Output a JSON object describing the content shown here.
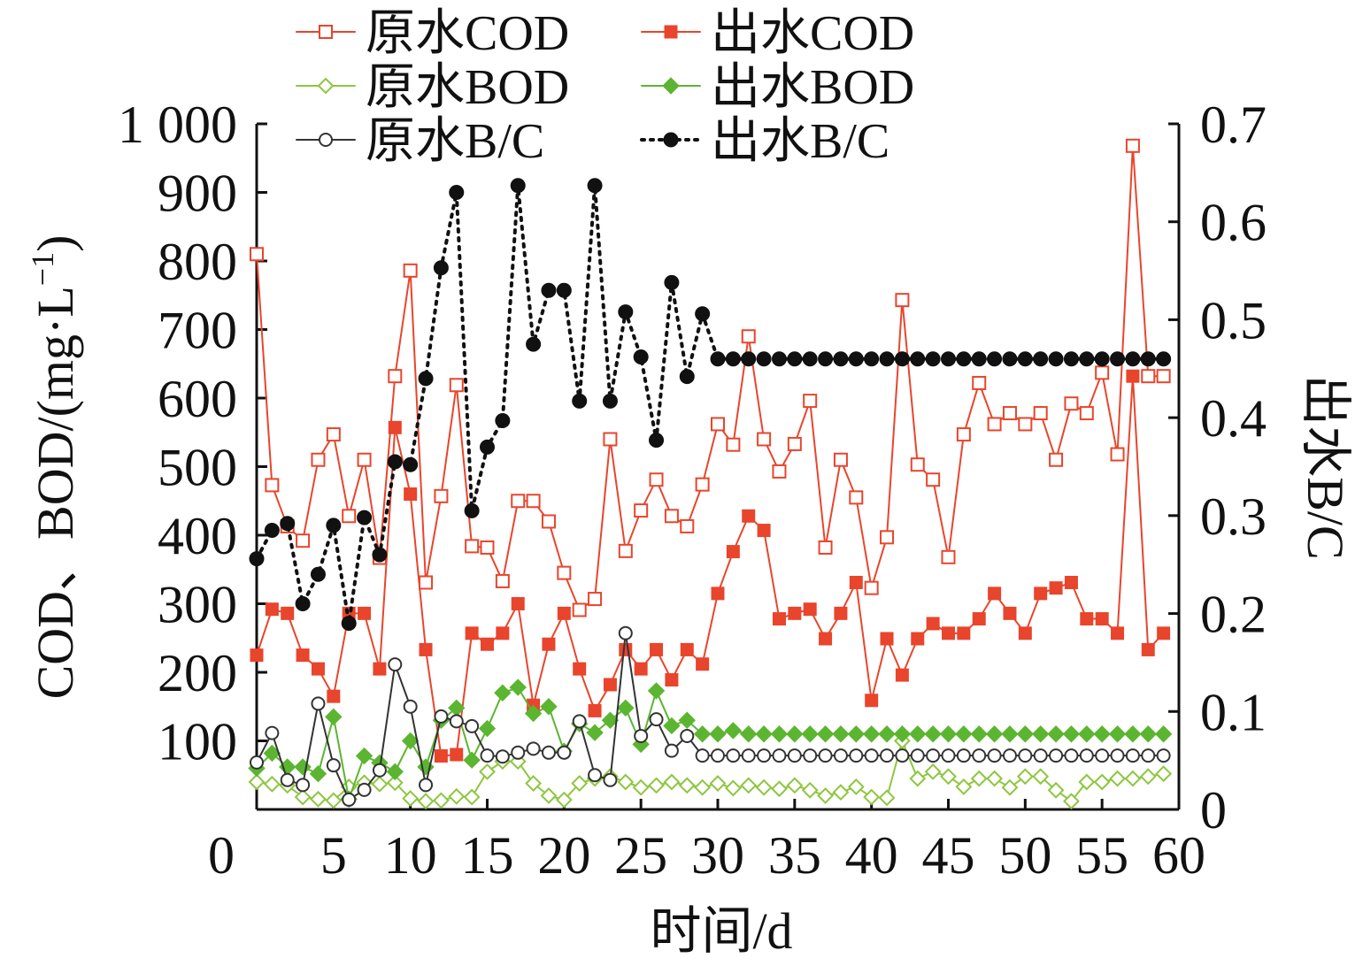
{
  "chart_data": {
    "type": "line",
    "x": [
      1,
      2,
      3,
      4,
      5,
      6,
      7,
      8,
      9,
      10,
      11,
      12,
      13,
      14,
      15,
      16,
      17,
      18,
      19,
      20,
      21,
      22,
      23,
      24,
      25,
      26,
      27,
      28,
      29,
      30,
      31,
      32,
      33,
      34,
      35,
      36,
      37,
      38,
      39,
      40,
      41,
      42,
      43,
      44,
      45,
      46,
      47,
      48,
      49,
      50,
      51,
      52,
      53,
      54,
      55,
      56,
      57,
      58,
      59,
      60
    ],
    "xlabel": "时间/d",
    "ylabel_left": "COD、BOD/(mg·L",
    "ylabel_left_sup": "−1",
    "ylabel_left_close": ")",
    "ylabel_right": "出水B/C",
    "xlim": [
      0,
      60
    ],
    "ylim_left": [
      0,
      1000
    ],
    "ylim_right": [
      0,
      0.7
    ],
    "x_ticks": [
      "0",
      "5",
      "10",
      "15",
      "20",
      "25",
      "30",
      "35",
      "40",
      "45",
      "50",
      "55",
      "60"
    ],
    "y_left_ticks": [
      "100",
      "200",
      "300",
      "400",
      "500",
      "600",
      "700",
      "800",
      "900",
      "1 000"
    ],
    "y_right_ticks": [
      "0",
      "0.1",
      "0.2",
      "0.3",
      "0.4",
      "0.5",
      "0.6",
      "0.7"
    ],
    "legend_position": "top",
    "series": [
      {
        "name": "原水COD",
        "axis": "left",
        "color": "#e8452c",
        "marker": "square-open",
        "dash": "solid",
        "values": [
          810,
          473,
          413,
          392,
          510,
          547,
          428,
          510,
          367,
          632,
          786,
          331,
          457,
          619,
          384,
          382,
          333,
          450,
          450,
          420,
          345,
          291,
          307,
          540,
          377,
          436,
          481,
          428,
          413,
          474,
          562,
          532,
          690,
          540,
          493,
          533,
          596,
          382,
          510,
          455,
          323,
          397,
          743,
          503,
          481,
          368,
          547,
          622,
          562,
          578,
          562,
          578,
          510,
          592,
          578,
          637,
          518,
          968,
          632,
          632
        ]
      },
      {
        "name": "出水COD",
        "axis": "left",
        "color": "#e8452c",
        "marker": "square-filled",
        "dash": "solid",
        "values": [
          225,
          292,
          286,
          225,
          205,
          165,
          286,
          286,
          205,
          557,
          460,
          233,
          78,
          80,
          257,
          241,
          257,
          300,
          152,
          241,
          286,
          205,
          144,
          182,
          233,
          205,
          233,
          189,
          233,
          212,
          315,
          376,
          428,
          407,
          278,
          286,
          292,
          249,
          286,
          331,
          159,
          249,
          196,
          249,
          271,
          257,
          257,
          278,
          315,
          286,
          257,
          315,
          323,
          331,
          278,
          278,
          257,
          632,
          233,
          257
        ]
      },
      {
        "name": "原水BOD",
        "axis": "left",
        "color": "#8ec63f",
        "marker": "diamond-open",
        "dash": "solid",
        "values": [
          40,
          37,
          35,
          18,
          15,
          13,
          33,
          39,
          37,
          39,
          16,
          12,
          13,
          19,
          18,
          55,
          70,
          70,
          38,
          20,
          14,
          38,
          45,
          48,
          40,
          32,
          35,
          40,
          35,
          32,
          38,
          31,
          35,
          32,
          30,
          35,
          28,
          20,
          25,
          33,
          18,
          17,
          100,
          45,
          55,
          48,
          33,
          45,
          45,
          32,
          48,
          48,
          28,
          12,
          40,
          40,
          45,
          45,
          48,
          52
        ]
      },
      {
        "name": "出水BOD",
        "axis": "left",
        "color": "#5cb531",
        "marker": "diamond-filled",
        "dash": "solid",
        "values": [
          60,
          82,
          62,
          62,
          52,
          135,
          15,
          78,
          68,
          55,
          100,
          62,
          130,
          148,
          72,
          118,
          170,
          178,
          140,
          150,
          85,
          125,
          112,
          130,
          148,
          95,
          173,
          122,
          130,
          110,
          110,
          115,
          110,
          110,
          110,
          110,
          110,
          110,
          110,
          110,
          110,
          110,
          110,
          110,
          110,
          110,
          110,
          110,
          110,
          110,
          110,
          110,
          110,
          110,
          110,
          110,
          110,
          110,
          110,
          110
        ]
      },
      {
        "name": "原水B/C",
        "axis": "right",
        "color": "#333333",
        "marker": "circle-open",
        "dash": "solid",
        "values": [
          0.048,
          0.078,
          0.03,
          0.025,
          0.108,
          0.045,
          0.01,
          0.02,
          0.04,
          0.148,
          0.105,
          0.025,
          0.095,
          0.09,
          0.085,
          0.055,
          0.054,
          0.058,
          0.062,
          0.058,
          0.058,
          0.09,
          0.035,
          0.03,
          0.18,
          0.075,
          0.092,
          0.06,
          0.075,
          0.055,
          0.055,
          0.055,
          0.055,
          0.055,
          0.055,
          0.055,
          0.055,
          0.055,
          0.055,
          0.055,
          0.055,
          0.055,
          0.055,
          0.055,
          0.055,
          0.055,
          0.055,
          0.055,
          0.055,
          0.055,
          0.055,
          0.055,
          0.055,
          0.055,
          0.055,
          0.055,
          0.055,
          0.055,
          0.055,
          0.055
        ]
      },
      {
        "name": "出水B/C",
        "axis": "right",
        "color": "#111111",
        "marker": "circle-filled",
        "dash": "dotted",
        "values": [
          0.256,
          0.285,
          0.292,
          0.21,
          0.24,
          0.29,
          0.19,
          0.298,
          0.26,
          0.355,
          0.352,
          0.44,
          0.553,
          0.63,
          0.305,
          0.37,
          0.397,
          0.637,
          0.475,
          0.53,
          0.53,
          0.417,
          0.637,
          0.417,
          0.508,
          0.462,
          0.377,
          0.538,
          0.442,
          0.506,
          0.46,
          0.46,
          0.46,
          0.46,
          0.46,
          0.46,
          0.46,
          0.46,
          0.46,
          0.46,
          0.46,
          0.46,
          0.46,
          0.46,
          0.46,
          0.46,
          0.46,
          0.46,
          0.46,
          0.46,
          0.46,
          0.46,
          0.46,
          0.46,
          0.46,
          0.46,
          0.46,
          0.46,
          0.46,
          0.46
        ]
      }
    ]
  }
}
